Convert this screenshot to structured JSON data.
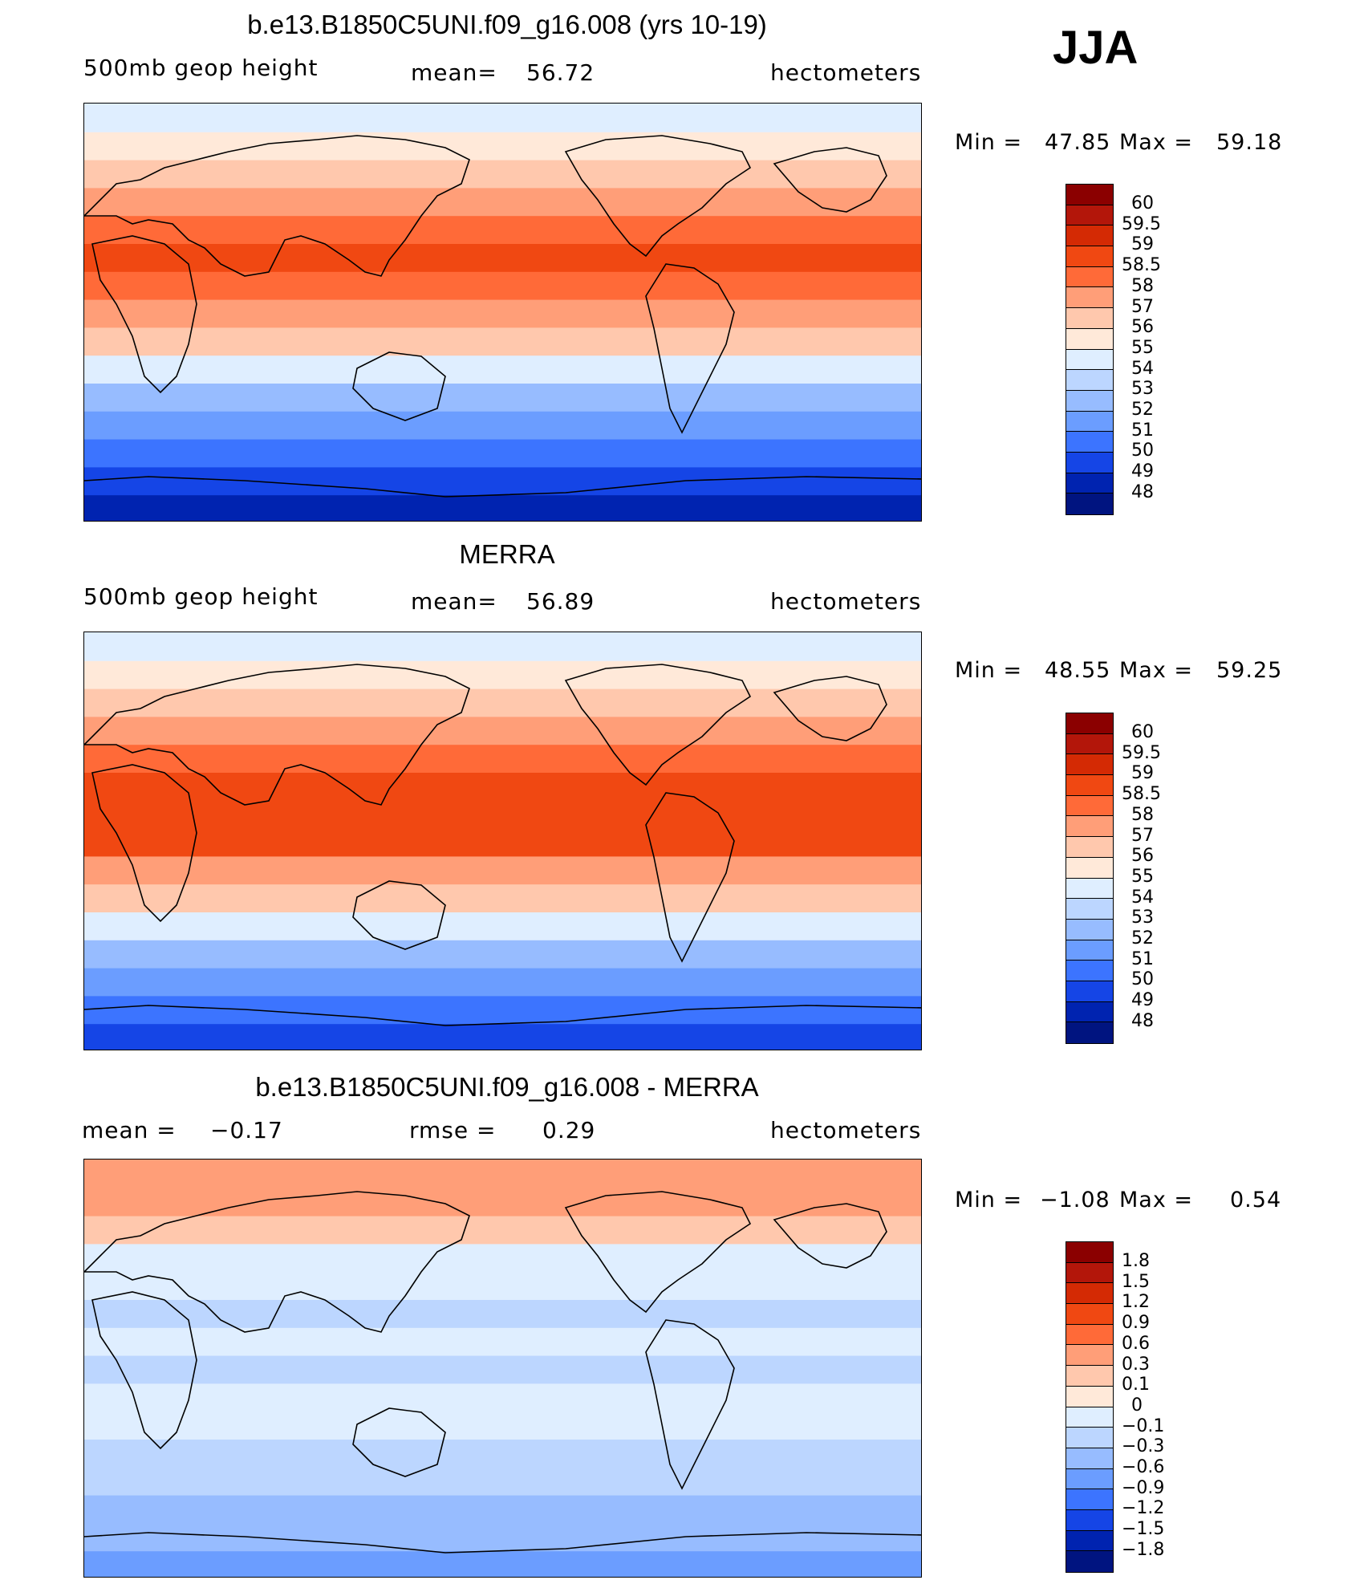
{
  "season": "JJA",
  "panels": [
    {
      "title": "b.e13.B1850C5UNI.f09_g16.008 (yrs 10-19)",
      "left_label": "500mb geop height",
      "center_label": "mean=",
      "center_value": "56.72",
      "units": "hectometers",
      "min_label": "Min =",
      "min_value": "47.85",
      "max_label": "Max =",
      "max_value": "59.18",
      "colorbar": {
        "labels": [
          "60",
          "59.5",
          "59",
          "58.5",
          "58",
          "57",
          "56",
          "55",
          "54",
          "53",
          "52",
          "51",
          "50",
          "49",
          "48"
        ],
        "colors": [
          "#8b0000",
          "#b3160a",
          "#d42a04",
          "#f04812",
          "#ff6a38",
          "#ff9e78",
          "#ffc8ad",
          "#ffe9d9",
          "#dfeeff",
          "#bcd6ff",
          "#97bcff",
          "#6b9dff",
          "#3c74ff",
          "#1545e6",
          "#0023b0",
          "#001480"
        ]
      },
      "map_bands": [
        "#0023b0",
        "#1545e6",
        "#3c74ff",
        "#6b9dff",
        "#97bcff",
        "#dfeeff",
        "#ffc8ad",
        "#ff9e78",
        "#ff6a38",
        "#f04812",
        "#ff6a38",
        "#ff9e78",
        "#ffc8ad",
        "#ffe9d9",
        "#dfeeff"
      ]
    },
    {
      "title": "MERRA",
      "left_label": "500mb geop height",
      "center_label": "mean=",
      "center_value": "56.89",
      "units": "hectometers",
      "min_label": "Min =",
      "min_value": "48.55",
      "max_label": "Max =",
      "max_value": "59.25",
      "colorbar": {
        "labels": [
          "60",
          "59.5",
          "59",
          "58.5",
          "58",
          "57",
          "56",
          "55",
          "54",
          "53",
          "52",
          "51",
          "50",
          "49",
          "48"
        ],
        "colors": [
          "#8b0000",
          "#b3160a",
          "#d42a04",
          "#f04812",
          "#ff6a38",
          "#ff9e78",
          "#ffc8ad",
          "#ffe9d9",
          "#dfeeff",
          "#bcd6ff",
          "#97bcff",
          "#6b9dff",
          "#3c74ff",
          "#1545e6",
          "#0023b0",
          "#001480"
        ]
      },
      "map_bands": [
        "#1545e6",
        "#3c74ff",
        "#6b9dff",
        "#97bcff",
        "#dfeeff",
        "#ffc8ad",
        "#ff9e78",
        "#f04812",
        "#f04812",
        "#f04812",
        "#ff6a38",
        "#ff9e78",
        "#ffc8ad",
        "#ffe9d9",
        "#dfeeff"
      ]
    },
    {
      "title": "b.e13.B1850C5UNI.f09_g16.008 - MERRA",
      "left_label": "mean =",
      "left_value": "−0.17",
      "center_label": "rmse =",
      "center_value": "0.29",
      "units": "hectometers",
      "min_label": "Min =",
      "min_value": "−1.08",
      "max_label": "Max =",
      "max_value": "0.54",
      "colorbar": {
        "labels": [
          "1.8",
          "1.5",
          "1.2",
          "0.9",
          "0.6",
          "0.3",
          "0.1",
          "0",
          "−0.1",
          "−0.3",
          "−0.6",
          "−0.9",
          "−1.2",
          "−1.5",
          "−1.8"
        ],
        "colors": [
          "#8b0000",
          "#b3160a",
          "#d42a04",
          "#f04812",
          "#ff6a38",
          "#ff9e78",
          "#ffc8ad",
          "#ffe9d9",
          "#dfeeff",
          "#bcd6ff",
          "#97bcff",
          "#6b9dff",
          "#3c74ff",
          "#1545e6",
          "#0023b0",
          "#001480"
        ]
      },
      "map_bands": [
        "#6b9dff",
        "#97bcff",
        "#97bcff",
        "#bcd6ff",
        "#bcd6ff",
        "#dfeeff",
        "#dfeeff",
        "#bcd6ff",
        "#dfeeff",
        "#bcd6ff",
        "#dfeeff",
        "#dfeeff",
        "#ffc8ad",
        "#ff9e78",
        "#ff9e78"
      ]
    }
  ]
}
